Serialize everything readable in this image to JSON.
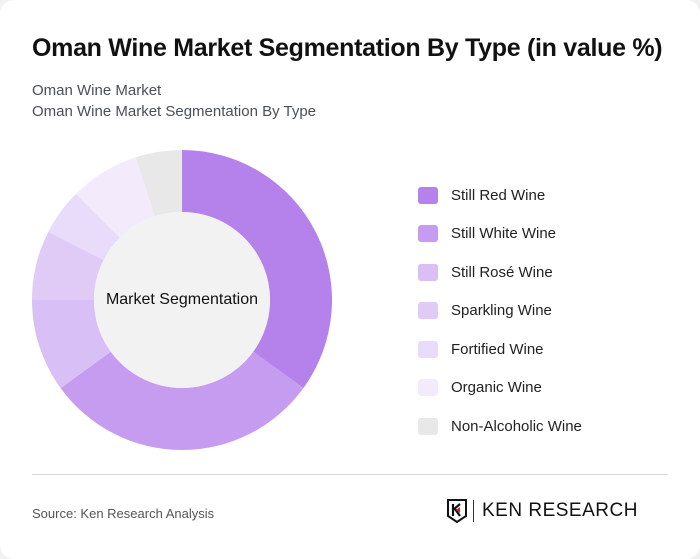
{
  "header": {
    "title": "Oman Wine Market Segmentation By Type (in value %)",
    "subtitle_1": "Oman Wine Market",
    "subtitle_2": "Oman Wine Market Segmentation By Type"
  },
  "chart_data": {
    "type": "pie",
    "variant": "donut",
    "title": "Oman Wine Market Segmentation By Type (in value %)",
    "center_label": "Market Segmentation",
    "categories": [
      "Still Red Wine",
      "Still White Wine",
      "Still Rosé Wine",
      "Sparkling Wine",
      "Fortified Wine",
      "Organic Wine",
      "Non-Alcoholic Wine"
    ],
    "values": [
      35,
      30,
      10,
      7.5,
      5,
      7.5,
      5
    ],
    "colors": [
      "#b482ea",
      "#c59cef",
      "#d8bff5",
      "#e0cbf7",
      "#e9dbfa",
      "#f3ebfc",
      "#e8e8e8"
    ],
    "legend_position": "right"
  },
  "legend": {
    "items": [
      {
        "label": "Still Red Wine",
        "color": "#b482ea"
      },
      {
        "label": "Still White Wine",
        "color": "#c59cef"
      },
      {
        "label": "Still Rosé Wine",
        "color": "#d8bff5"
      },
      {
        "label": "Sparkling Wine",
        "color": "#e0cbf7"
      },
      {
        "label": "Fortified Wine",
        "color": "#e9dbfa"
      },
      {
        "label": "Organic Wine",
        "color": "#f3ebfc"
      },
      {
        "label": "Non-Alcoholic Wine",
        "color": "#e8e8e8"
      }
    ]
  },
  "footer": {
    "source": "Source: Ken Research Analysis",
    "logo_text": "KEN RESEARCH",
    "logo_icon": "ken-research-shield-icon"
  }
}
